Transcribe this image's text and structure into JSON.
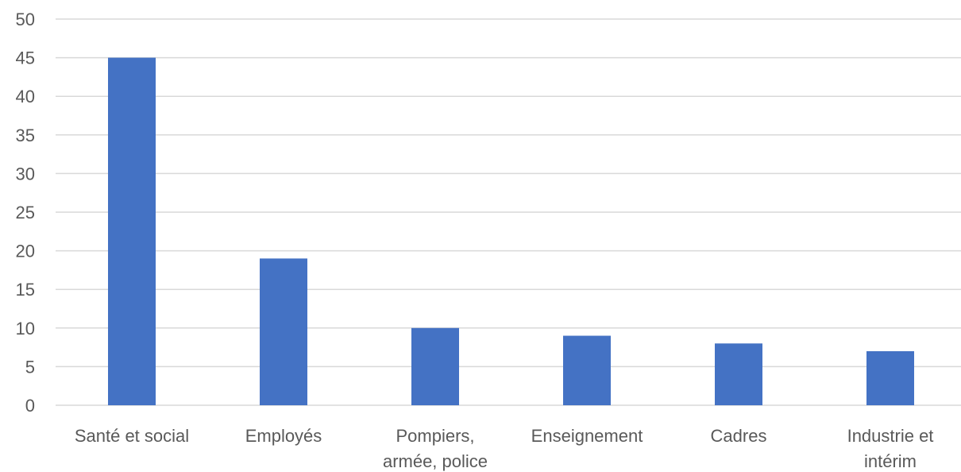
{
  "chart_data": {
    "type": "bar",
    "categories": [
      [
        "Santé et social"
      ],
      [
        "Employés"
      ],
      [
        "Pompiers,",
        "armée, police"
      ],
      [
        "Enseignement"
      ],
      [
        "Cadres"
      ],
      [
        "Industrie et",
        "intérim"
      ]
    ],
    "values": [
      45,
      19,
      10,
      9,
      8,
      7
    ],
    "ylim": [
      0,
      50
    ],
    "yticks": [
      "0",
      "5",
      "10",
      "15",
      "20",
      "25",
      "30",
      "35",
      "40",
      "45",
      "50"
    ],
    "grid": true,
    "bar_color": "#4472c4",
    "title": "",
    "xlabel": "",
    "ylabel": ""
  }
}
